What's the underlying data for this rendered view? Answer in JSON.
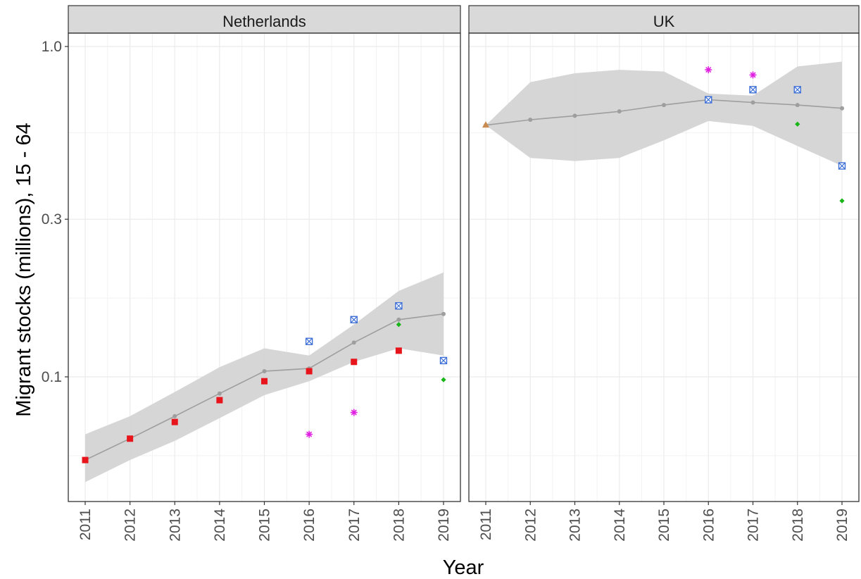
{
  "chart_data": {
    "type": "line",
    "xlabel": "Year",
    "ylabel": "Migrant stocks (millions), 15 - 64",
    "y_scale": "log",
    "ylim": [
      0.045,
      1.2
    ],
    "y_ticks": [
      0.1,
      0.3,
      1.0
    ],
    "y_tick_labels": [
      "0.1",
      "0.3",
      "1.0"
    ],
    "x_ticks": [
      2011,
      2012,
      2013,
      2014,
      2015,
      2016,
      2017,
      2018,
      2019
    ],
    "x_tick_labels": [
      "2011",
      "2012",
      "2013",
      "2014",
      "2015",
      "2016",
      "2017",
      "2018",
      "2019"
    ],
    "grid": true,
    "colors": {
      "estimate": "#9e9e9e",
      "band": "#d4d4d4",
      "red_square": "#e8141c",
      "blue_box": "#3d6fd6",
      "green_point": "#19b519",
      "magenta_star": "#e020e0",
      "orange_triangle": "#c98b4f",
      "strip_bg": "#d9d9d9"
    },
    "panels": [
      {
        "strip": "Netherlands",
        "estimate": [
          {
            "x": 2011,
            "y": 0.056,
            "lo": 0.048,
            "hi": 0.067
          },
          {
            "x": 2012,
            "y": 0.065,
            "lo": 0.056,
            "hi": 0.076
          },
          {
            "x": 2013,
            "y": 0.076,
            "lo": 0.064,
            "hi": 0.09
          },
          {
            "x": 2014,
            "y": 0.089,
            "lo": 0.075,
            "hi": 0.107
          },
          {
            "x": 2015,
            "y": 0.104,
            "lo": 0.088,
            "hi": 0.122
          },
          {
            "x": 2016,
            "y": 0.106,
            "lo": 0.097,
            "hi": 0.116
          },
          {
            "x": 2017,
            "y": 0.127,
            "lo": 0.111,
            "hi": 0.144
          },
          {
            "x": 2018,
            "y": 0.149,
            "lo": 0.122,
            "hi": 0.182
          },
          {
            "x": 2019,
            "y": 0.155,
            "lo": 0.116,
            "hi": 0.207
          }
        ],
        "observations": [
          {
            "series": "red_square",
            "points": [
              [
                2011,
                0.056
              ],
              [
                2012,
                0.065
              ],
              [
                2013,
                0.073
              ],
              [
                2014,
                0.085
              ],
              [
                2015,
                0.097
              ],
              [
                2016,
                0.104
              ],
              [
                2017,
                0.111
              ],
              [
                2018,
                0.12
              ]
            ]
          },
          {
            "series": "blue_box",
            "points": [
              [
                2016,
                0.128
              ],
              [
                2017,
                0.149
              ],
              [
                2018,
                0.164
              ],
              [
                2019,
                0.112
              ]
            ]
          },
          {
            "series": "green_point",
            "points": [
              [
                2018,
                0.144
              ],
              [
                2019,
                0.098
              ]
            ]
          },
          {
            "series": "magenta_star",
            "points": [
              [
                2016,
                0.067
              ],
              [
                2017,
                0.078
              ]
            ]
          }
        ]
      },
      {
        "strip": "UK",
        "estimate": [
          {
            "x": 2011,
            "y": 0.578,
            "lo": 0.578,
            "hi": 0.578
          },
          {
            "x": 2012,
            "y": 0.6,
            "lo": 0.46,
            "hi": 0.78
          },
          {
            "x": 2013,
            "y": 0.617,
            "lo": 0.45,
            "hi": 0.83
          },
          {
            "x": 2014,
            "y": 0.636,
            "lo": 0.46,
            "hi": 0.85
          },
          {
            "x": 2015,
            "y": 0.665,
            "lo": 0.52,
            "hi": 0.84
          },
          {
            "x": 2016,
            "y": 0.69,
            "lo": 0.595,
            "hi": 0.72
          },
          {
            "x": 2017,
            "y": 0.677,
            "lo": 0.575,
            "hi": 0.71
          },
          {
            "x": 2018,
            "y": 0.665,
            "lo": 0.5,
            "hi": 0.87
          },
          {
            "x": 2019,
            "y": 0.65,
            "lo": 0.435,
            "hi": 0.9
          }
        ],
        "observations": [
          {
            "series": "orange_triangle",
            "points": [
              [
                2011,
                0.578
              ]
            ]
          },
          {
            "series": "blue_box",
            "points": [
              [
                2016,
                0.69
              ],
              [
                2017,
                0.74
              ],
              [
                2018,
                0.74
              ],
              [
                2019,
                0.435
              ]
            ]
          },
          {
            "series": "green_point",
            "points": [
              [
                2018,
                0.582
              ],
              [
                2019,
                0.341
              ]
            ]
          },
          {
            "series": "magenta_star",
            "points": [
              [
                2016,
                0.85
              ],
              [
                2017,
                0.82
              ]
            ]
          }
        ]
      }
    ]
  }
}
